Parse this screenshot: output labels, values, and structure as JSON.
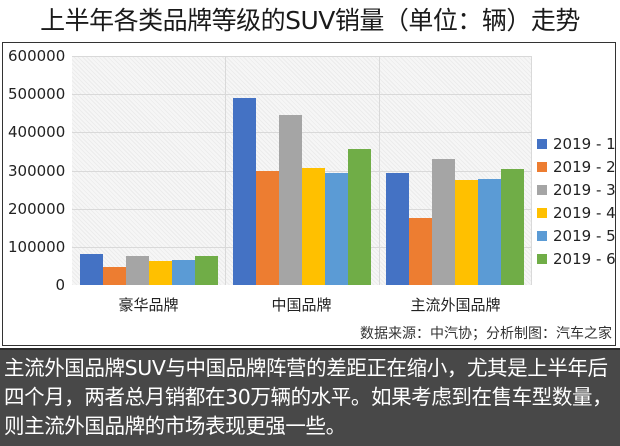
{
  "title": "上半年各类品牌等级的SUV销量（单位：辆）走势",
  "chart_data": {
    "type": "bar",
    "title": "上半年各类品牌等级的SUV销量（单位：辆）走势",
    "xlabel": "",
    "ylabel": "",
    "ylim": [
      0,
      600000
    ],
    "yticks": [
      "600000",
      "500000",
      "400000",
      "300000",
      "200000",
      "100000",
      "0"
    ],
    "grid": true,
    "legend_position": "right",
    "categories": [
      "豪华品牌",
      "中国品牌",
      "主流外国品牌"
    ],
    "series": [
      {
        "name": "2019 - 1",
        "color": "#4472C4",
        "values": [
          81000,
          489000,
          294000
        ]
      },
      {
        "name": "2019 - 2",
        "color": "#ED7D31",
        "values": [
          46000,
          298000,
          175000
        ]
      },
      {
        "name": "2019 - 3",
        "color": "#A5A5A5",
        "values": [
          77000,
          445000,
          330000
        ]
      },
      {
        "name": "2019 - 4",
        "color": "#FFC000",
        "values": [
          62000,
          306000,
          275000
        ]
      },
      {
        "name": "2019 - 5",
        "color": "#5B9BD5",
        "values": [
          65000,
          293000,
          279000
        ]
      },
      {
        "name": "2019 - 6",
        "color": "#70AD47",
        "values": [
          76000,
          356000,
          303000
        ]
      }
    ]
  },
  "source": "数据来源：中汽协；分析制图：汽车之家",
  "caption": "主流外国品牌SUV与中国品牌阵营的差距正在缩小，尤其是上半年后四个月，两者总月销都在30万辆的水平。如果考虑到在售车型数量，则主流外国品牌的市场表现更强一些。"
}
